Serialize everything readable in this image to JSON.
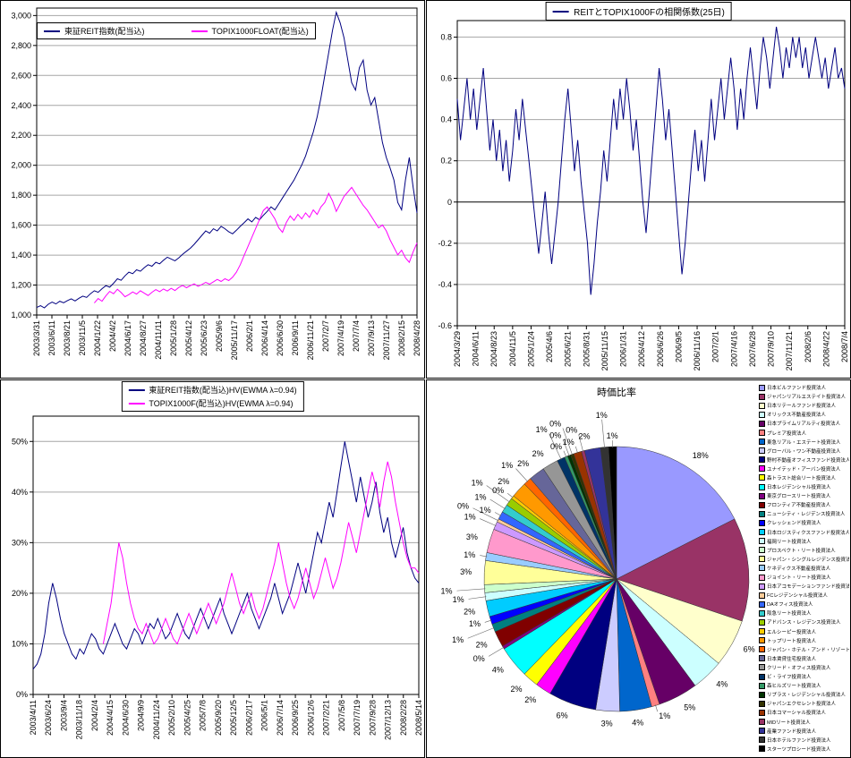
{
  "colors": {
    "navy": "#000080",
    "magenta": "#FF00FF"
  },
  "chart_data": [
    {
      "type": "line",
      "title": "",
      "legend_position": "top-left",
      "ylim": [
        1000,
        3050
      ],
      "grid": true,
      "y_ticks": [
        {
          "v": 3000,
          "label": "3,000"
        },
        {
          "v": 2800,
          "label": "2,800"
        },
        {
          "v": 2600,
          "label": "2,600"
        },
        {
          "v": 2400,
          "label": "2,400"
        },
        {
          "v": 2200,
          "label": "2,200"
        },
        {
          "v": 2000,
          "label": "2,000"
        },
        {
          "v": 1800,
          "label": "1,800"
        },
        {
          "v": 1600,
          "label": "1,600"
        },
        {
          "v": 1400,
          "label": "1,400"
        },
        {
          "v": 1200,
          "label": "1,200"
        },
        {
          "v": 1000,
          "label": "1,000"
        }
      ],
      "x_labels": [
        "2003/3/31",
        "2003/6/11",
        "2003/8/21",
        "2003/11/5",
        "2004/1/22",
        "2004/4/2",
        "2004/6/17",
        "2004/8/27",
        "2004/11/11",
        "2005/1/28",
        "2005/4/12",
        "2005/6/23",
        "2005/9/6",
        "2005/11/17",
        "2006/2/1",
        "2006/4/14",
        "2006/6/30",
        "2006/9/11",
        "2006/11/21",
        "2007/2/7",
        "2007/4/19",
        "2007/7/4",
        "2007/9/13",
        "2007/11/27",
        "2008/2/15",
        "2008/4/28"
      ],
      "series": [
        {
          "name": "東証REIT指数(配当込)",
          "color": "#000080",
          "values": [
            1050,
            1062,
            1048,
            1072,
            1086,
            1074,
            1092,
            1082,
            1096,
            1108,
            1094,
            1112,
            1126,
            1118,
            1142,
            1162,
            1152,
            1176,
            1196,
            1186,
            1212,
            1242,
            1232,
            1262,
            1286,
            1276,
            1302,
            1292,
            1316,
            1336,
            1326,
            1352,
            1342,
            1366,
            1386,
            1374,
            1362,
            1382,
            1406,
            1426,
            1446,
            1472,
            1502,
            1532,
            1562,
            1546,
            1576,
            1562,
            1592,
            1576,
            1556,
            1542,
            1566,
            1592,
            1616,
            1642,
            1622,
            1652,
            1636,
            1666,
            1692,
            1722,
            1702,
            1742,
            1782,
            1822,
            1862,
            1902,
            1952,
            2002,
            2062,
            2142,
            2222,
            2322,
            2452,
            2602,
            2752,
            2902,
            3022,
            2952,
            2852,
            2702,
            2552,
            2502,
            2652,
            2702,
            2502,
            2402,
            2452,
            2302,
            2152,
            2052,
            1982,
            1902,
            1752,
            1702,
            1902,
            2052,
            1852,
            1682
          ]
        },
        {
          "name": "TOPIX1000FLOAT(配当込)",
          "color": "#FF00FF",
          "values": [
            null,
            null,
            null,
            null,
            null,
            null,
            null,
            null,
            null,
            null,
            null,
            null,
            null,
            null,
            null,
            1080,
            1110,
            1092,
            1128,
            1158,
            1142,
            1172,
            1150,
            1122,
            1136,
            1154,
            1140,
            1162,
            1146,
            1130,
            1152,
            1170,
            1156,
            1174,
            1160,
            1178,
            1164,
            1184,
            1198,
            1182,
            1196,
            1208,
            1192,
            1204,
            1218,
            1206,
            1222,
            1238,
            1224,
            1242,
            1230,
            1252,
            1286,
            1336,
            1398,
            1458,
            1518,
            1578,
            1638,
            1698,
            1722,
            1682,
            1642,
            1582,
            1552,
            1618,
            1662,
            1632,
            1672,
            1642,
            1682,
            1652,
            1702,
            1672,
            1722,
            1752,
            1812,
            1762,
            1692,
            1742,
            1792,
            1822,
            1852,
            1812,
            1772,
            1732,
            1702,
            1662,
            1622,
            1582,
            1602,
            1562,
            1502,
            1452,
            1402,
            1432,
            1382,
            1352,
            1422,
            1482
          ]
        }
      ]
    },
    {
      "type": "line",
      "title": "REITとTOPIX1000Fの相関係数(25日)",
      "legend_position": "top-center",
      "ylim": [
        -0.6,
        0.88
      ],
      "grid": true,
      "y_ticks": [
        {
          "v": 0.8,
          "label": "0.8"
        },
        {
          "v": 0.6,
          "label": "0.6"
        },
        {
          "v": 0.4,
          "label": "0.4"
        },
        {
          "v": 0.2,
          "label": "0.2"
        },
        {
          "v": 0,
          "label": "0",
          "axis": true
        },
        {
          "v": -0.2,
          "label": "-0.2"
        },
        {
          "v": -0.4,
          "label": "-0.4"
        },
        {
          "v": -0.6,
          "label": "-0.6"
        }
      ],
      "x_labels": [
        "2004/3/29",
        "2004/6/11",
        "2004/8/23",
        "2004/11/5",
        "2005/1/24",
        "2005/4/6",
        "2005/6/21",
        "2005/8/31",
        "2005/11/15",
        "2006/1/31",
        "2006/4/12",
        "2006/6/26",
        "2006/9/5",
        "2006/11/16",
        "2007/2/1",
        "2007/4/16",
        "2007/6/28",
        "2007/9/10",
        "2007/11/21",
        "2008/2/6",
        "2008/4/22",
        "2008/7/4"
      ],
      "series": [
        {
          "name": "REITとTOPIX1000Fの相関係数(25日)",
          "color": "#000080",
          "values": [
            0.5,
            0.3,
            0.45,
            0.6,
            0.4,
            0.55,
            0.35,
            0.5,
            0.65,
            0.45,
            0.25,
            0.4,
            0.2,
            0.35,
            0.15,
            0.3,
            0.1,
            0.25,
            0.45,
            0.3,
            0.5,
            0.35,
            0.2,
            0.05,
            -0.1,
            -0.25,
            -0.1,
            0.05,
            -0.15,
            -0.3,
            -0.15,
            0.0,
            0.2,
            0.4,
            0.55,
            0.35,
            0.15,
            0.3,
            0.1,
            -0.05,
            -0.2,
            -0.45,
            -0.3,
            -0.1,
            0.05,
            0.25,
            0.1,
            0.3,
            0.5,
            0.35,
            0.55,
            0.4,
            0.6,
            0.45,
            0.25,
            0.4,
            0.2,
            0.0,
            -0.15,
            0.05,
            0.25,
            0.45,
            0.65,
            0.5,
            0.3,
            0.45,
            0.25,
            0.05,
            -0.15,
            -0.35,
            -0.2,
            0.0,
            0.2,
            0.35,
            0.15,
            0.3,
            0.1,
            0.3,
            0.5,
            0.3,
            0.45,
            0.6,
            0.4,
            0.55,
            0.7,
            0.55,
            0.35,
            0.55,
            0.4,
            0.6,
            0.75,
            0.6,
            0.45,
            0.65,
            0.8,
            0.7,
            0.55,
            0.7,
            0.85,
            0.75,
            0.6,
            0.75,
            0.65,
            0.8,
            0.7,
            0.8,
            0.65,
            0.75,
            0.6,
            0.7,
            0.8,
            0.7,
            0.6,
            0.7,
            0.55,
            0.65,
            0.75,
            0.6,
            0.65,
            0.55
          ]
        }
      ]
    },
    {
      "type": "line",
      "title": "",
      "legend_position": "top-center",
      "ylim": [
        0,
        55
      ],
      "grid": true,
      "y_ticks": [
        {
          "v": 50,
          "label": "50%"
        },
        {
          "v": 40,
          "label": "40%"
        },
        {
          "v": 30,
          "label": "30%"
        },
        {
          "v": 20,
          "label": "20%"
        },
        {
          "v": 10,
          "label": "10%"
        },
        {
          "v": 0,
          "label": "0%"
        }
      ],
      "x_labels": [
        "2003/4/11",
        "2003/6/24",
        "2003/9/4",
        "2003/11/18",
        "2004/2/4",
        "2004/4/15",
        "2004/6/30",
        "2004/9/9",
        "2004/11/24",
        "2005/2/10",
        "2005/4/25",
        "2005/7/8",
        "2005/9/20",
        "2005/12/5",
        "2006/2/17",
        "2006/5/1",
        "2006/7/14",
        "2006/9/25",
        "2006/12/6",
        "2007/2/21",
        "2007/5/8",
        "2007/7/19",
        "2007/9/28",
        "2007/12/13",
        "2008/2/28",
        "2008/5/14"
      ],
      "series": [
        {
          "name": "東証REIT指数(配当込)HV(EWMA λ=0.94)",
          "color": "#000080",
          "values": [
            5,
            6,
            8,
            12,
            18,
            22,
            19,
            15,
            12,
            10,
            8,
            7,
            9,
            8,
            10,
            12,
            11,
            9,
            8,
            10,
            12,
            14,
            12,
            10,
            9,
            11,
            13,
            12,
            10,
            12,
            14,
            13,
            15,
            13,
            11,
            12,
            14,
            16,
            14,
            12,
            11,
            13,
            15,
            17,
            15,
            13,
            15,
            17,
            19,
            16,
            14,
            12,
            14,
            16,
            18,
            20,
            17,
            15,
            13,
            15,
            17,
            19,
            22,
            19,
            16,
            18,
            20,
            23,
            26,
            23,
            20,
            24,
            28,
            32,
            30,
            34,
            38,
            35,
            40,
            45,
            50,
            46,
            42,
            38,
            43,
            39,
            35,
            38,
            42,
            36,
            32,
            35,
            30,
            27,
            30,
            33,
            28,
            25,
            23,
            22
          ]
        },
        {
          "name": "TOPIX1000F(配当込)HV(EWMA λ=0.94)",
          "color": "#FF00FF",
          "values": [
            null,
            null,
            null,
            null,
            null,
            null,
            null,
            null,
            null,
            null,
            null,
            null,
            null,
            null,
            null,
            null,
            null,
            null,
            10,
            14,
            18,
            24,
            30,
            27,
            22,
            18,
            15,
            13,
            12,
            14,
            12,
            10,
            11,
            13,
            15,
            13,
            11,
            10,
            12,
            14,
            16,
            14,
            12,
            14,
            16,
            18,
            16,
            14,
            16,
            18,
            21,
            24,
            21,
            18,
            16,
            18,
            20,
            17,
            15,
            17,
            20,
            23,
            26,
            30,
            26,
            22,
            19,
            17,
            19,
            22,
            25,
            22,
            19,
            21,
            24,
            27,
            24,
            21,
            23,
            26,
            30,
            34,
            31,
            28,
            32,
            36,
            40,
            44,
            41,
            37,
            42,
            46,
            43,
            38,
            34,
            30,
            27,
            25,
            25,
            24
          ]
        }
      ]
    },
    {
      "type": "pie",
      "title": "時価比率",
      "legend_position": "right",
      "slices": [
        {
          "name": "日本ビルファンド投資法人",
          "value": 18,
          "color": "#9999FF"
        },
        {
          "name": "ジャパンリアルエステイト投資法人",
          "value": 13,
          "color": "#993366"
        },
        {
          "name": "日本リテールファンド投資法人",
          "value": 6,
          "color": "#FFFFCC"
        },
        {
          "name": "オリックス不動産投資法人",
          "value": 4,
          "color": "#CCFFFF"
        },
        {
          "name": "日本プライムリアルティ投資法人",
          "value": 5,
          "color": "#660066"
        },
        {
          "name": "プレミア投資法人",
          "value": 1,
          "color": "#FF8080"
        },
        {
          "name": "東急リアル・エステート投資法人",
          "value": 4,
          "color": "#0066CC"
        },
        {
          "name": "グローバル・ワン不動産投資法人",
          "value": 3,
          "color": "#CCCCFF"
        },
        {
          "name": "野村不動産オフィスファンド投資法人",
          "value": 6,
          "color": "#000080"
        },
        {
          "name": "ユナイテッド・アーバン投資法人",
          "value": 2,
          "color": "#FF00FF"
        },
        {
          "name": "森トラスト総合リート投資法人",
          "value": 2,
          "color": "#FFFF00"
        },
        {
          "name": "日本レジデンシャル投資法人",
          "value": 4,
          "color": "#00FFFF"
        },
        {
          "name": "東京グロースリート投資法人",
          "value": 0.4,
          "color": "#800080"
        },
        {
          "name": "フロンティア不動産投資法人",
          "value": 2,
          "color": "#800000"
        },
        {
          "name": "ニューシティ・レジデンス投資法人",
          "value": 1,
          "color": "#008080"
        },
        {
          "name": "クレッシェンド投資法人",
          "value": 1,
          "color": "#0000FF"
        },
        {
          "name": "日本ロジスティクスファンド投資法人",
          "value": 2,
          "color": "#00CCFF"
        },
        {
          "name": "福岡リート投資法人",
          "value": 1,
          "color": "#CCFFFF"
        },
        {
          "name": "プロスペクト・リート投資法人",
          "value": 1,
          "color": "#CCFFCC"
        },
        {
          "name": "ジャパン・シングルレジデンス投資法人",
          "value": 3,
          "color": "#FFFF99"
        },
        {
          "name": "ケネディクス不動産投資法人",
          "value": 1,
          "color": "#99CCFF"
        },
        {
          "name": "ジョイント・リート投資法人",
          "value": 3,
          "color": "#FF99CC"
        },
        {
          "name": "日本アコモデーションファンド投資法人",
          "value": 1,
          "color": "#CC99FF"
        },
        {
          "name": "FCレジデンシャル投資法人",
          "value": 0.4,
          "color": "#FFCC99"
        },
        {
          "name": "DAオフィス投資法人",
          "value": 1,
          "color": "#3366FF"
        },
        {
          "name": "阪急リート投資法人",
          "value": 1,
          "color": "#33CCCC"
        },
        {
          "name": "アドバンス・レジデンス投資法人",
          "value": 1,
          "color": "#99CC00"
        },
        {
          "name": "エルシーピー投資法人",
          "value": 0.4,
          "color": "#FFCC00"
        },
        {
          "name": "トップリート投資法人",
          "value": 2,
          "color": "#FF9900"
        },
        {
          "name": "ジャパン・ホテル・アンド・リゾート投資法人",
          "value": 1,
          "color": "#FF6600"
        },
        {
          "name": "日本賃貸住宅投資法人",
          "value": 2,
          "color": "#666699"
        },
        {
          "name": "クリード・オフィス投資法人",
          "value": 2,
          "color": "#969696"
        },
        {
          "name": "ビ・ライフ投資法人",
          "value": 1,
          "color": "#003366"
        },
        {
          "name": "森ヒルズリート投資法人",
          "value": 0.4,
          "color": "#339966"
        },
        {
          "name": "リプラス・レジデンシャル投資法人",
          "value": 0.4,
          "color": "#003300"
        },
        {
          "name": "ジャパンエクセレント投資法人",
          "value": 0.4,
          "color": "#333300"
        },
        {
          "name": "日本コマーシャル投資法人",
          "value": 1,
          "color": "#993300"
        },
        {
          "name": "MIDリート投資法人",
          "value": 0.4,
          "color": "#993366"
        },
        {
          "name": "産業ファンド投資法人",
          "value": 2,
          "color": "#333399"
        },
        {
          "name": "日本ホテルファンド投資法人",
          "value": 1,
          "color": "#333333"
        },
        {
          "name": "スターツプロシード投資法人",
          "value": 1,
          "color": "#000000"
        }
      ]
    }
  ]
}
